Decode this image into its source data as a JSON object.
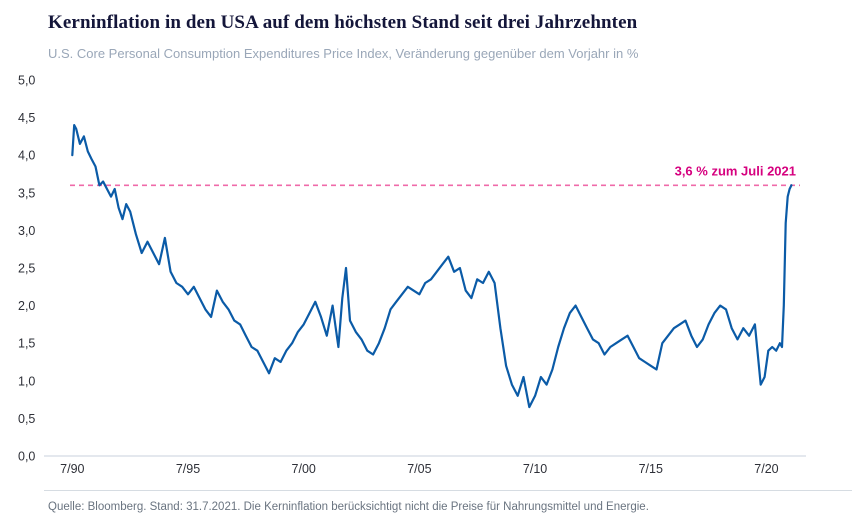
{
  "header": {
    "title": "Kerninflation in den USA auf dem höchsten Stand seit drei Jahrzehnten",
    "subtitle": "U.S. Core Personal Consumption Expenditures Price Index, Veränderung gegenüber dem Vorjahr in %"
  },
  "footer": {
    "source": "Quelle: Bloomberg. Stand: 31.7.2021. Die Kerninflation berücksichtigt nicht die Preise für Nahrungsmittel und Energie."
  },
  "colors": {
    "line": "#0b5ba7",
    "reference_line": "#ef6aa9",
    "reference_text": "#d6017f",
    "axis_line": "#c9d2dc",
    "tick_text": "#2e3038",
    "title_text": "#14163a",
    "subtitle_text": "#9aa7b8",
    "source_text": "#6a7480"
  },
  "chart_data": {
    "type": "line",
    "title": "Kerninflation in den USA auf dem höchsten Stand seit drei Jahrzehnten",
    "subtitle": "U.S. Core Personal Consumption Expenditures Price Index, Veränderung gegenüber dem Vorjahr in %",
    "xlabel": "",
    "ylabel": "Veränderung gegenüber dem Vorjahr in %",
    "ylim": [
      0,
      5
    ],
    "xlim": [
      1990.4,
      2021.95
    ],
    "grid": false,
    "legend": "none",
    "y_ticks": [
      {
        "value": 0.0,
        "label": "0,0"
      },
      {
        "value": 0.5,
        "label": "0,5"
      },
      {
        "value": 1.0,
        "label": "1,0"
      },
      {
        "value": 1.5,
        "label": "1,5"
      },
      {
        "value": 2.0,
        "label": "2,0"
      },
      {
        "value": 2.5,
        "label": "2,5"
      },
      {
        "value": 3.0,
        "label": "3,0"
      },
      {
        "value": 3.5,
        "label": "3,5"
      },
      {
        "value": 4.0,
        "label": "4,0"
      },
      {
        "value": 4.5,
        "label": "4,5"
      },
      {
        "value": 5.0,
        "label": "5,0"
      }
    ],
    "x_ticks": [
      {
        "value": 1990.5,
        "label": "7/90"
      },
      {
        "value": 1995.5,
        "label": "7/95"
      },
      {
        "value": 2000.5,
        "label": "7/00"
      },
      {
        "value": 2005.5,
        "label": "7/05"
      },
      {
        "value": 2010.5,
        "label": "7/10"
      },
      {
        "value": 2015.5,
        "label": "7/15"
      },
      {
        "value": 2020.5,
        "label": "7/20"
      }
    ],
    "reference_line": {
      "value": 3.6,
      "label": "3,6 % zum Juli 2021",
      "style": "dashed"
    },
    "series": [
      {
        "name": "U.S. Core PCE, Veränderung gegenüber dem Vorjahr in %",
        "points": [
          [
            1990.5,
            4.0
          ],
          [
            1990.58,
            4.4
          ],
          [
            1990.67,
            4.35
          ],
          [
            1990.83,
            4.15
          ],
          [
            1991.0,
            4.25
          ],
          [
            1991.17,
            4.05
          ],
          [
            1991.33,
            3.95
          ],
          [
            1991.5,
            3.85
          ],
          [
            1991.67,
            3.6
          ],
          [
            1991.83,
            3.65
          ],
          [
            1992.0,
            3.55
          ],
          [
            1992.17,
            3.45
          ],
          [
            1992.33,
            3.55
          ],
          [
            1992.5,
            3.3
          ],
          [
            1992.67,
            3.15
          ],
          [
            1992.83,
            3.35
          ],
          [
            1993.0,
            3.25
          ],
          [
            1993.25,
            2.95
          ],
          [
            1993.5,
            2.7
          ],
          [
            1993.75,
            2.85
          ],
          [
            1994.0,
            2.7
          ],
          [
            1994.25,
            2.55
          ],
          [
            1994.5,
            2.9
          ],
          [
            1994.75,
            2.45
          ],
          [
            1995.0,
            2.3
          ],
          [
            1995.25,
            2.25
          ],
          [
            1995.5,
            2.15
          ],
          [
            1995.75,
            2.25
          ],
          [
            1996.0,
            2.1
          ],
          [
            1996.25,
            1.95
          ],
          [
            1996.5,
            1.85
          ],
          [
            1996.75,
            2.2
          ],
          [
            1997.0,
            2.05
          ],
          [
            1997.25,
            1.95
          ],
          [
            1997.5,
            1.8
          ],
          [
            1997.75,
            1.75
          ],
          [
            1998.0,
            1.6
          ],
          [
            1998.25,
            1.45
          ],
          [
            1998.5,
            1.4
          ],
          [
            1998.75,
            1.25
          ],
          [
            1999.0,
            1.1
          ],
          [
            1999.25,
            1.3
          ],
          [
            1999.5,
            1.25
          ],
          [
            1999.75,
            1.4
          ],
          [
            2000.0,
            1.5
          ],
          [
            2000.25,
            1.65
          ],
          [
            2000.5,
            1.75
          ],
          [
            2000.75,
            1.9
          ],
          [
            2001.0,
            2.05
          ],
          [
            2001.25,
            1.85
          ],
          [
            2001.5,
            1.6
          ],
          [
            2001.75,
            2.0
          ],
          [
            2002.0,
            1.45
          ],
          [
            2002.17,
            2.1
          ],
          [
            2002.33,
            2.5
          ],
          [
            2002.5,
            1.8
          ],
          [
            2002.75,
            1.65
          ],
          [
            2003.0,
            1.55
          ],
          [
            2003.25,
            1.4
          ],
          [
            2003.5,
            1.35
          ],
          [
            2003.75,
            1.5
          ],
          [
            2004.0,
            1.7
          ],
          [
            2004.25,
            1.95
          ],
          [
            2004.5,
            2.05
          ],
          [
            2004.75,
            2.15
          ],
          [
            2005.0,
            2.25
          ],
          [
            2005.25,
            2.2
          ],
          [
            2005.5,
            2.15
          ],
          [
            2005.75,
            2.3
          ],
          [
            2006.0,
            2.35
          ],
          [
            2006.25,
            2.45
          ],
          [
            2006.5,
            2.55
          ],
          [
            2006.75,
            2.65
          ],
          [
            2007.0,
            2.45
          ],
          [
            2007.25,
            2.5
          ],
          [
            2007.5,
            2.2
          ],
          [
            2007.75,
            2.1
          ],
          [
            2008.0,
            2.35
          ],
          [
            2008.25,
            2.3
          ],
          [
            2008.5,
            2.45
          ],
          [
            2008.75,
            2.3
          ],
          [
            2009.0,
            1.7
          ],
          [
            2009.25,
            1.2
          ],
          [
            2009.5,
            0.95
          ],
          [
            2009.75,
            0.8
          ],
          [
            2010.0,
            1.05
          ],
          [
            2010.25,
            0.65
          ],
          [
            2010.5,
            0.8
          ],
          [
            2010.75,
            1.05
          ],
          [
            2011.0,
            0.95
          ],
          [
            2011.25,
            1.15
          ],
          [
            2011.5,
            1.45
          ],
          [
            2011.75,
            1.7
          ],
          [
            2012.0,
            1.9
          ],
          [
            2012.25,
            2.0
          ],
          [
            2012.5,
            1.85
          ],
          [
            2012.75,
            1.7
          ],
          [
            2013.0,
            1.55
          ],
          [
            2013.25,
            1.5
          ],
          [
            2013.5,
            1.35
          ],
          [
            2013.75,
            1.45
          ],
          [
            2014.0,
            1.5
          ],
          [
            2014.25,
            1.55
          ],
          [
            2014.5,
            1.6
          ],
          [
            2014.75,
            1.45
          ],
          [
            2015.0,
            1.3
          ],
          [
            2015.25,
            1.25
          ],
          [
            2015.5,
            1.2
          ],
          [
            2015.75,
            1.15
          ],
          [
            2016.0,
            1.5
          ],
          [
            2016.25,
            1.6
          ],
          [
            2016.5,
            1.7
          ],
          [
            2016.75,
            1.75
          ],
          [
            2017.0,
            1.8
          ],
          [
            2017.25,
            1.6
          ],
          [
            2017.5,
            1.45
          ],
          [
            2017.75,
            1.55
          ],
          [
            2018.0,
            1.75
          ],
          [
            2018.25,
            1.9
          ],
          [
            2018.5,
            2.0
          ],
          [
            2018.75,
            1.95
          ],
          [
            2019.0,
            1.7
          ],
          [
            2019.25,
            1.55
          ],
          [
            2019.5,
            1.7
          ],
          [
            2019.75,
            1.6
          ],
          [
            2020.0,
            1.75
          ],
          [
            2020.25,
            0.95
          ],
          [
            2020.42,
            1.05
          ],
          [
            2020.58,
            1.4
          ],
          [
            2020.75,
            1.45
          ],
          [
            2020.92,
            1.4
          ],
          [
            2021.08,
            1.5
          ],
          [
            2021.17,
            1.45
          ],
          [
            2021.25,
            2.0
          ],
          [
            2021.33,
            3.1
          ],
          [
            2021.42,
            3.45
          ],
          [
            2021.5,
            3.55
          ],
          [
            2021.58,
            3.6
          ]
        ]
      }
    ]
  }
}
